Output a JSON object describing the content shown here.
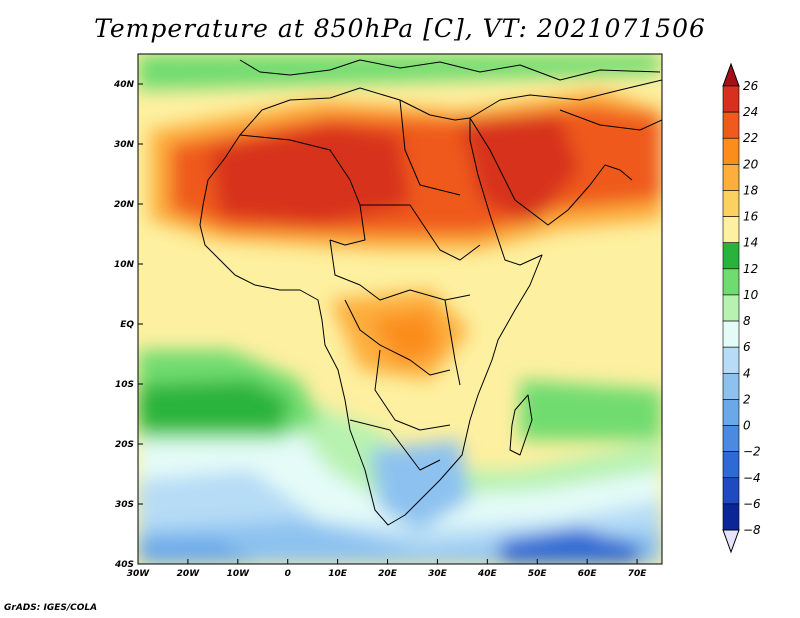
{
  "title": "Temperature at 850hPa [C], VT: 2021071506",
  "footer": "GrADS: IGES/COLA",
  "map": {
    "lon_range": [
      -30,
      75
    ],
    "lat_range": [
      -40,
      45
    ],
    "lon_ticks": [
      {
        "value": -30,
        "label": "30W"
      },
      {
        "value": -20,
        "label": "20W"
      },
      {
        "value": -10,
        "label": "10W"
      },
      {
        "value": 0,
        "label": "0"
      },
      {
        "value": 10,
        "label": "10E"
      },
      {
        "value": 20,
        "label": "20E"
      },
      {
        "value": 30,
        "label": "30E"
      },
      {
        "value": 40,
        "label": "40E"
      },
      {
        "value": 50,
        "label": "50E"
      },
      {
        "value": 60,
        "label": "60E"
      },
      {
        "value": 70,
        "label": "70E"
      }
    ],
    "lat_ticks": [
      {
        "value": 40,
        "label": "40N"
      },
      {
        "value": 30,
        "label": "30N"
      },
      {
        "value": 20,
        "label": "20N"
      },
      {
        "value": 10,
        "label": "10N"
      },
      {
        "value": 0,
        "label": "EQ"
      },
      {
        "value": -10,
        "label": "10S"
      },
      {
        "value": -20,
        "label": "20S"
      },
      {
        "value": -30,
        "label": "30S"
      },
      {
        "value": -40,
        "label": "40S"
      }
    ]
  },
  "colorbar": {
    "levels": [
      26,
      24,
      22,
      20,
      18,
      16,
      14,
      12,
      10,
      8,
      6,
      4,
      2,
      0,
      -2,
      -4,
      -6,
      -8
    ],
    "colors": [
      "#a50f15",
      "#d7301f",
      "#ef5a1d",
      "#fb8d1d",
      "#fdae3c",
      "#fdd062",
      "#fdf0a0",
      "#29b33c",
      "#6fdc6f",
      "#b7f2b0",
      "#e4fbf8",
      "#b6dcf6",
      "#8dc2f0",
      "#6aa8ea",
      "#4a8ae0",
      "#2e6ad4",
      "#1e4bc0",
      "#0b2795",
      "#0a1a70"
    ]
  }
}
